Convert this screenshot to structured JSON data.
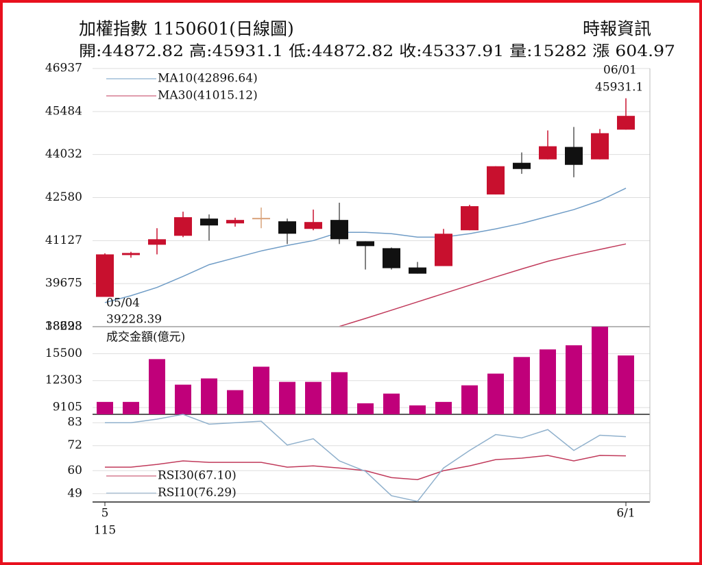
{
  "header": {
    "title": "加權指數 1150601(日線圖)",
    "source": "時報資訊",
    "stats": "開:44872.82 高:45931.1 低:44872.82 收:45337.91 量:15282 漲 604.97"
  },
  "chart_data": [
    {
      "type": "candlestick",
      "ylim": [
        38223,
        46937
      ],
      "yticks": [
        46937,
        45484,
        44032,
        42580,
        41127,
        39675,
        38223
      ],
      "grid": true,
      "colors": {
        "up": "#c8102e",
        "down": "#111111",
        "flat": "#d9a27a"
      },
      "open": [
        39228.39,
        40640,
        40988,
        41290,
        41871,
        41709,
        41871,
        41779,
        41523,
        41825,
        41105,
        40872,
        40221,
        40268,
        41477,
        42685,
        43754,
        43870,
        44289,
        43870,
        44872.82
      ],
      "close": [
        40663,
        40710,
        41174,
        41918,
        41639,
        41825,
        41871,
        41360,
        41755,
        41174,
        40942,
        40198,
        40012,
        41360,
        42290,
        43638,
        43545,
        44312,
        43684,
        44753,
        45337.91
      ],
      "high": [
        40700,
        40750,
        41546,
        42104,
        42011,
        41900,
        42243,
        41871,
        42174,
        42406,
        41105,
        40895,
        40408,
        41523,
        42336,
        43638,
        44103,
        44846,
        44963,
        44893,
        45931.1
      ],
      "low": [
        39228.39,
        40550,
        40663,
        41244,
        41128,
        41600,
        41546,
        41012,
        41477,
        41012,
        40152,
        40152,
        40012,
        40268,
        41477,
        42685,
        43382,
        43870,
        43266,
        43870,
        44872.82
      ],
      "series": [
        {
          "name": "MA10(42896.64)",
          "color": "#6f9cc6",
          "values": [
            39036,
            39269,
            39548,
            39920,
            40315,
            40547,
            40779,
            40965,
            41128,
            41407,
            41407,
            41360,
            41244,
            41244,
            41360,
            41523,
            41709,
            41941,
            42174,
            42476,
            42896.64
          ]
        },
        {
          "name": "MA30(41015.12)",
          "color": "#c0395a",
          "values": [
            null,
            null,
            null,
            null,
            null,
            null,
            null,
            null,
            null,
            38230,
            38500,
            38780,
            39060,
            39340,
            39620,
            39900,
            40170,
            40430,
            40640,
            40830,
            41015.12
          ]
        }
      ],
      "annotations": [
        "06/01",
        "45931.1",
        "05/04",
        "39228.39"
      ]
    },
    {
      "type": "bar",
      "label": "成交金額(億元)",
      "color": "#c0007a",
      "ylim": [
        8300,
        18698
      ],
      "yticks": [
        18698,
        15500,
        12303,
        9105
      ],
      "values": [
        9774,
        9774,
        14850,
        11820,
        12560,
        11170,
        13950,
        12150,
        12150,
        13300,
        9610,
        10760,
        9360,
        9774,
        11740,
        13130,
        15100,
        16000,
        16490,
        18698,
        15282
      ]
    },
    {
      "type": "line",
      "ylim": [
        45,
        87
      ],
      "yticks": [
        83,
        72,
        60,
        49
      ],
      "categories": [
        "5",
        null,
        null,
        null,
        null,
        null,
        null,
        null,
        null,
        null,
        null,
        null,
        null,
        null,
        null,
        null,
        null,
        null,
        null,
        null,
        "6/1"
      ],
      "year_label": "115",
      "series": [
        {
          "name": "RSI30(67.10)",
          "color": "#c0395a",
          "values": [
            61.7,
            61.7,
            63,
            64.7,
            64,
            64,
            64,
            61.7,
            62.3,
            61.3,
            60,
            56.7,
            55.7,
            60,
            62.3,
            65.3,
            66,
            67.3,
            64.7,
            67.3,
            67.1
          ]
        },
        {
          "name": "RSI10(76.29)",
          "color": "#8fb0cc",
          "values": [
            83,
            83,
            84.7,
            87,
            82.3,
            83,
            83.7,
            72.3,
            75.3,
            64.7,
            59.7,
            48,
            45.3,
            61.3,
            69.7,
            77.3,
            75.7,
            79.7,
            69.7,
            77,
            76.29
          ]
        }
      ]
    }
  ]
}
